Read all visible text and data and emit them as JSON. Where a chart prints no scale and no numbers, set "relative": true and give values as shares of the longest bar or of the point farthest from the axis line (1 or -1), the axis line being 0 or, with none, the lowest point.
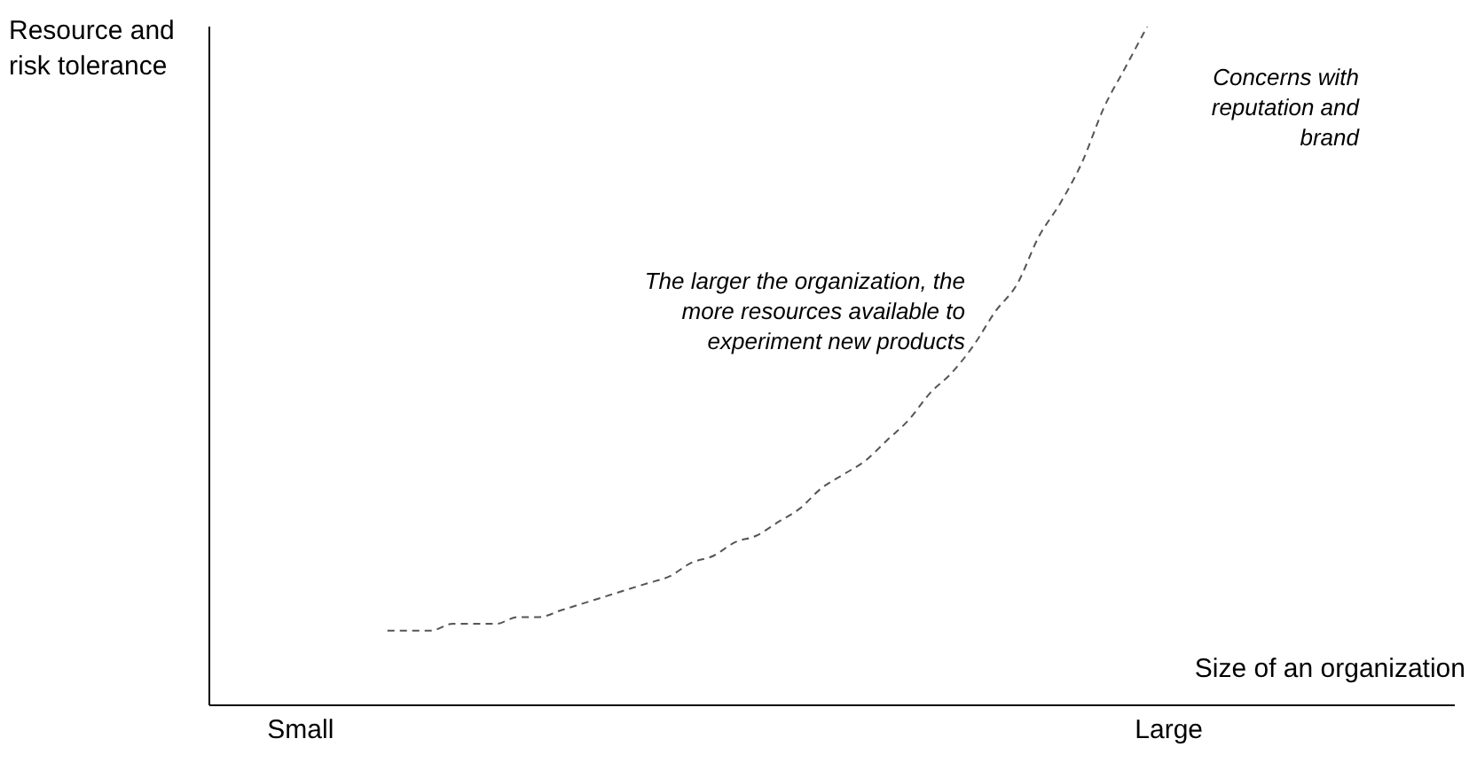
{
  "chart_data": {
    "type": "line",
    "relative": true,
    "xlabel": "Size of an organization",
    "ylabel": "Resource and risk tolerance",
    "categories": [
      "Small",
      null,
      null,
      null,
      null,
      null,
      null,
      null,
      null,
      null,
      null,
      null,
      null,
      null,
      null,
      null,
      null,
      null,
      null,
      null,
      null,
      null,
      null,
      null,
      null,
      null,
      null,
      null,
      null,
      null,
      null,
      null,
      null,
      null,
      null,
      null,
      null,
      null,
      null,
      null,
      "Large"
    ],
    "series": [
      {
        "color": "#555555",
        "values": [
          null,
          null,
          null,
          null,
          0.11,
          0.11,
          0.11,
          0.12,
          0.12,
          0.12,
          0.13,
          0.13,
          0.14,
          0.15,
          0.16,
          0.17,
          0.18,
          0.19,
          0.21,
          0.22,
          0.24,
          0.25,
          0.27,
          0.29,
          0.32,
          0.34,
          0.36,
          0.39,
          0.42,
          0.46,
          0.49,
          0.53,
          0.58,
          0.62,
          0.69,
          0.74,
          0.8,
          0.88,
          0.94,
          1,
          null
        ]
      }
    ],
    "line_style": "dashed",
    "marker": "none",
    "grid": false,
    "legend": false,
    "annotations": [
      "Concerns with reputation and brand",
      "The larger the organization, the more resources available to experiment new products"
    ]
  }
}
